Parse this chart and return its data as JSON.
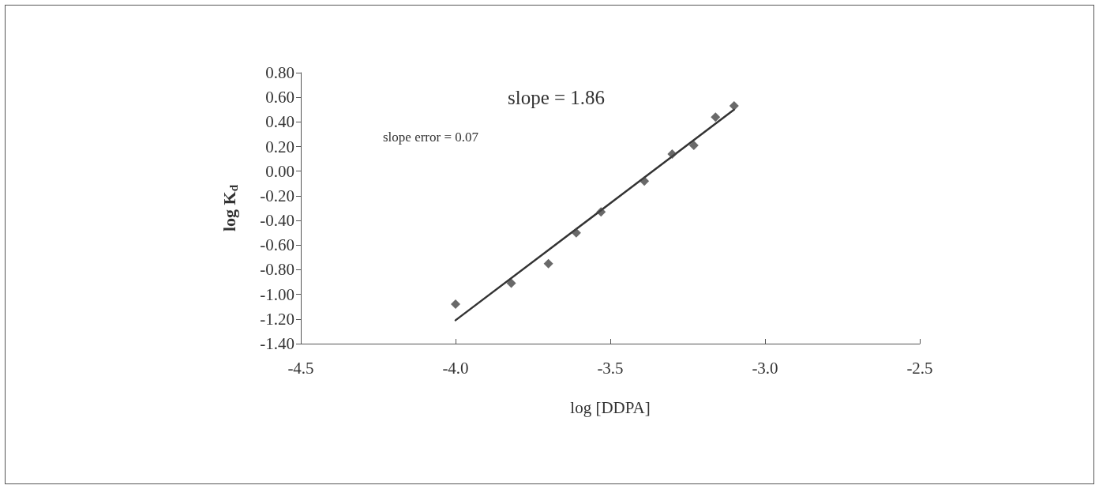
{
  "chart_data": {
    "type": "scatter",
    "xlabel": "log [DDPA]",
    "ylabel": "log K$_{d}$",
    "annotations": [
      "slope = 1.86",
      "slope error = 0.07"
    ],
    "xlim": [
      -4.5,
      -2.5
    ],
    "xticks": [
      {
        "value": -4.5,
        "label": "-4.5"
      },
      {
        "value": -4.0,
        "label": "-4.0"
      },
      {
        "value": -3.5,
        "label": "-3.5"
      },
      {
        "value": -3.0,
        "label": "-3.0"
      },
      {
        "value": -2.5,
        "label": "-2.5"
      }
    ],
    "ylim": [
      -1.4,
      0.8
    ],
    "yticks": [
      {
        "value": -1.4,
        "label": "-1.40"
      },
      {
        "value": -1.2,
        "label": "-1.20"
      },
      {
        "value": -1.0,
        "label": "-1.00"
      },
      {
        "value": -0.8,
        "label": "-0.80"
      },
      {
        "value": -0.6,
        "label": "-0.60"
      },
      {
        "value": -0.4,
        "label": "-0.40"
      },
      {
        "value": -0.2,
        "label": "-0.20"
      },
      {
        "value": 0,
        "label": "0.00"
      },
      {
        "value": 0.2,
        "label": "0.20"
      },
      {
        "value": 0.4,
        "label": "0.40"
      },
      {
        "value": 0.6,
        "label": "0.60"
      },
      {
        "value": 0.8,
        "label": "0.80"
      }
    ],
    "grid": false,
    "series": [
      {
        "marker": "diamond",
        "color": "#444444",
        "x": [
          -4.0,
          -3.82,
          -3.7,
          -3.61,
          -3.53,
          -3.39,
          -3.3,
          -3.23,
          -3.16,
          -3.1
        ],
        "values": [
          -1.08,
          -0.91,
          -0.75,
          -0.5,
          -0.33,
          -0.08,
          0.14,
          0.21,
          0.44,
          0.53
        ]
      },
      {
        "type": "line",
        "marker": "none",
        "line_style": "solid",
        "color": "#333333",
        "x": [
          -4.0,
          -3.1
        ],
        "values": [
          -1.21,
          0.5
        ]
      }
    ]
  }
}
